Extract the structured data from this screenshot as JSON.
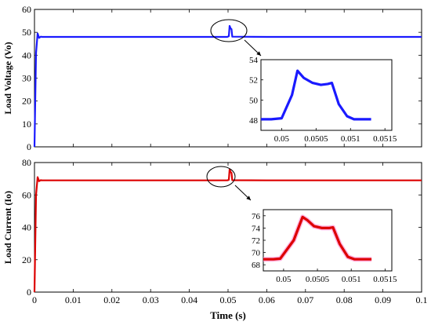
{
  "chart_data": [
    {
      "type": "line",
      "panel": "top",
      "ylabel": "Load Voltage (Vo)",
      "xlabel": "",
      "ylim": [
        0,
        60
      ],
      "yticks": [
        0,
        10,
        20,
        30,
        40,
        50,
        60
      ],
      "xlim": [
        0,
        0.1
      ],
      "grid": false,
      "series": [
        {
          "color": "#1a1aff",
          "x": [
            0,
            0.0004,
            0.0008,
            0.0012,
            0.0016,
            0.002,
            0.01,
            0.02,
            0.03,
            0.04,
            0.0498,
            0.0502,
            0.0504,
            0.0507,
            0.0509,
            0.0511,
            0.06,
            0.07,
            0.08,
            0.09,
            0.1
          ],
          "y": [
            0,
            41,
            49.5,
            47.6,
            48.1,
            48,
            48,
            48,
            48,
            48,
            48,
            48.3,
            52.8,
            51.6,
            51.4,
            48.1,
            48,
            48,
            48,
            48,
            48
          ]
        }
      ],
      "inset": {
        "xlim": [
          0.0497,
          0.0516
        ],
        "ylim": [
          47,
          54
        ],
        "xticks": [
          0.05,
          0.0505,
          0.051,
          0.0515
        ],
        "xtick_labels": [
          "0.05",
          "0.0505",
          "0.051",
          "0.0515"
        ],
        "yticks": [
          48,
          50,
          52,
          54
        ],
        "x": [
          0.0497,
          0.04985,
          0.05,
          0.05015,
          0.05023,
          0.05032,
          0.05045,
          0.05057,
          0.05067,
          0.05073,
          0.05083,
          0.05095,
          0.05105,
          0.05115,
          0.0513
        ],
        "y": [
          48.1,
          48.1,
          48.2,
          50.5,
          52.9,
          52.2,
          51.7,
          51.5,
          51.6,
          51.7,
          49.6,
          48.4,
          48.1,
          48.1,
          48.1
        ]
      }
    },
    {
      "type": "line",
      "panel": "bottom",
      "ylabel": "Load Current (Io)",
      "xlabel": "Time (s)",
      "ylim": [
        0,
        80
      ],
      "yticks": [
        0,
        20,
        40,
        60,
        80
      ],
      "xlim": [
        0,
        0.1
      ],
      "xticks": [
        0,
        0.01,
        0.02,
        0.03,
        0.04,
        0.05,
        0.06,
        0.07,
        0.08,
        0.09,
        0.1
      ],
      "xtick_labels": [
        "0",
        "0.01",
        "0.02",
        "0.03",
        "0.04",
        "0.05",
        "0.06",
        "0.07",
        "0.08",
        "0.09",
        "0.1"
      ],
      "grid": false,
      "series": [
        {
          "color": "#dd0000",
          "x": [
            0,
            0.0004,
            0.0008,
            0.0012,
            0.0016,
            0.002,
            0.01,
            0.02,
            0.03,
            0.04,
            0.0498,
            0.0502,
            0.0504,
            0.0507,
            0.0509,
            0.0511,
            0.06,
            0.07,
            0.08,
            0.09,
            0.1
          ],
          "y": [
            0,
            60,
            71,
            68.5,
            69.1,
            69,
            69,
            69,
            69,
            69,
            69,
            69.3,
            75.8,
            74,
            73.7,
            69.1,
            69,
            69,
            69,
            69,
            69
          ]
        }
      ],
      "inset": {
        "xlim": [
          0.0497,
          0.0516
        ],
        "ylim": [
          67,
          77
        ],
        "xticks": [
          0.05,
          0.0505,
          0.051,
          0.0515
        ],
        "xtick_labels": [
          "0.05",
          "0.0505",
          "0.051",
          "0.0515"
        ],
        "yticks": [
          68,
          70,
          72,
          74,
          76
        ],
        "x": [
          0.0497,
          0.04985,
          0.04995,
          0.05015,
          0.05028,
          0.05035,
          0.05045,
          0.05057,
          0.05067,
          0.05073,
          0.05083,
          0.05095,
          0.05105,
          0.05115,
          0.0513
        ],
        "y": [
          68.9,
          68.9,
          69,
          72,
          75.8,
          75.3,
          74.3,
          74,
          74,
          74.1,
          71.4,
          69.3,
          68.9,
          68.9,
          68.9
        ]
      }
    }
  ]
}
